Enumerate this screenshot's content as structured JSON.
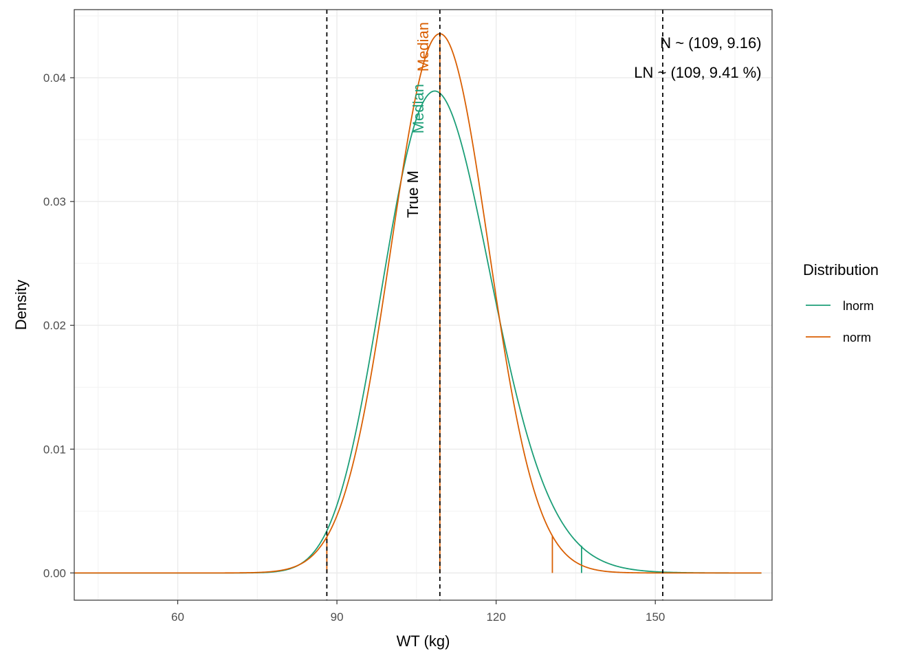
{
  "chart_data": {
    "type": "line",
    "xlabel": "WT (kg)",
    "ylabel": "Density",
    "xlim": [
      40.5,
      172
    ],
    "ylim": [
      -0.0022,
      0.0455
    ],
    "x_ticks": [
      60,
      90,
      120,
      150
    ],
    "y_ticks": [
      0.0,
      0.01,
      0.02,
      0.03,
      0.04
    ],
    "x_tick_labels": [
      "60",
      "90",
      "120",
      "150"
    ],
    "y_tick_labels": [
      "0.00",
      "0.01",
      "0.02",
      "0.03",
      "0.04"
    ],
    "grid": true,
    "legend_position": "right",
    "legend_title": "Distribution",
    "series": [
      {
        "name": "lnorm",
        "color": "#1b9e77",
        "dist": "lognormal",
        "median": 109.4,
        "sdlog": 0.0941,
        "x_range": [
          40.5,
          170
        ],
        "sample_points": [
          [
            80,
            0.00058
          ],
          [
            88,
            0.0032
          ],
          [
            95,
            0.0143
          ],
          [
            100,
            0.0255
          ],
          [
            105,
            0.0352
          ],
          [
            108.5,
            0.039
          ],
          [
            115,
            0.033
          ],
          [
            120,
            0.0213
          ],
          [
            130,
            0.0056
          ],
          [
            136,
            0.002
          ],
          [
            150,
            0.00015
          ]
        ],
        "quantile_lines": [
          {
            "x": 136.1,
            "y": 0.0022
          }
        ]
      },
      {
        "name": "norm",
        "color": "#d95f02",
        "dist": "normal",
        "mean": 109.4,
        "sd": 9.16,
        "x_range": [
          40.5,
          170
        ],
        "sample_points": [
          [
            80,
            0.00024
          ],
          [
            88,
            0.0029
          ],
          [
            95,
            0.0127
          ],
          [
            100,
            0.0257
          ],
          [
            105,
            0.0387
          ],
          [
            109.4,
            0.0435
          ],
          [
            115,
            0.0375
          ],
          [
            120,
            0.0224
          ],
          [
            130,
            0.0035
          ],
          [
            140,
            0.00017
          ]
        ],
        "quantile_lines": [
          {
            "x": 88.1,
            "y": 0.0029
          },
          {
            "x": 109.4,
            "y": 0.0435
          },
          {
            "x": 130.6,
            "y": 0.003
          }
        ]
      }
    ],
    "reference_lines": [
      {
        "x": 88.1,
        "style": "dashed",
        "color": "#000000"
      },
      {
        "x": 109.4,
        "style": "dashed",
        "color": "#000000"
      },
      {
        "x": 151.4,
        "style": "dashed",
        "color": "#000000"
      }
    ],
    "vertical_labels": [
      {
        "text": "Median",
        "color": "#d95f02",
        "x": 109.4,
        "y": 0.0445
      },
      {
        "text": "Median",
        "color": "#1b9e77",
        "x": 108.5,
        "y": 0.0395
      },
      {
        "text": "True M",
        "color": "#000000",
        "x": 107.5,
        "y": 0.0325
      }
    ],
    "annotations": [
      {
        "text": "N ~ (109, 9.16)",
        "x": 170,
        "y": 0.0424
      },
      {
        "text": "LN ~ (109, 9.41 %)",
        "x": 170,
        "y": 0.04
      }
    ]
  }
}
